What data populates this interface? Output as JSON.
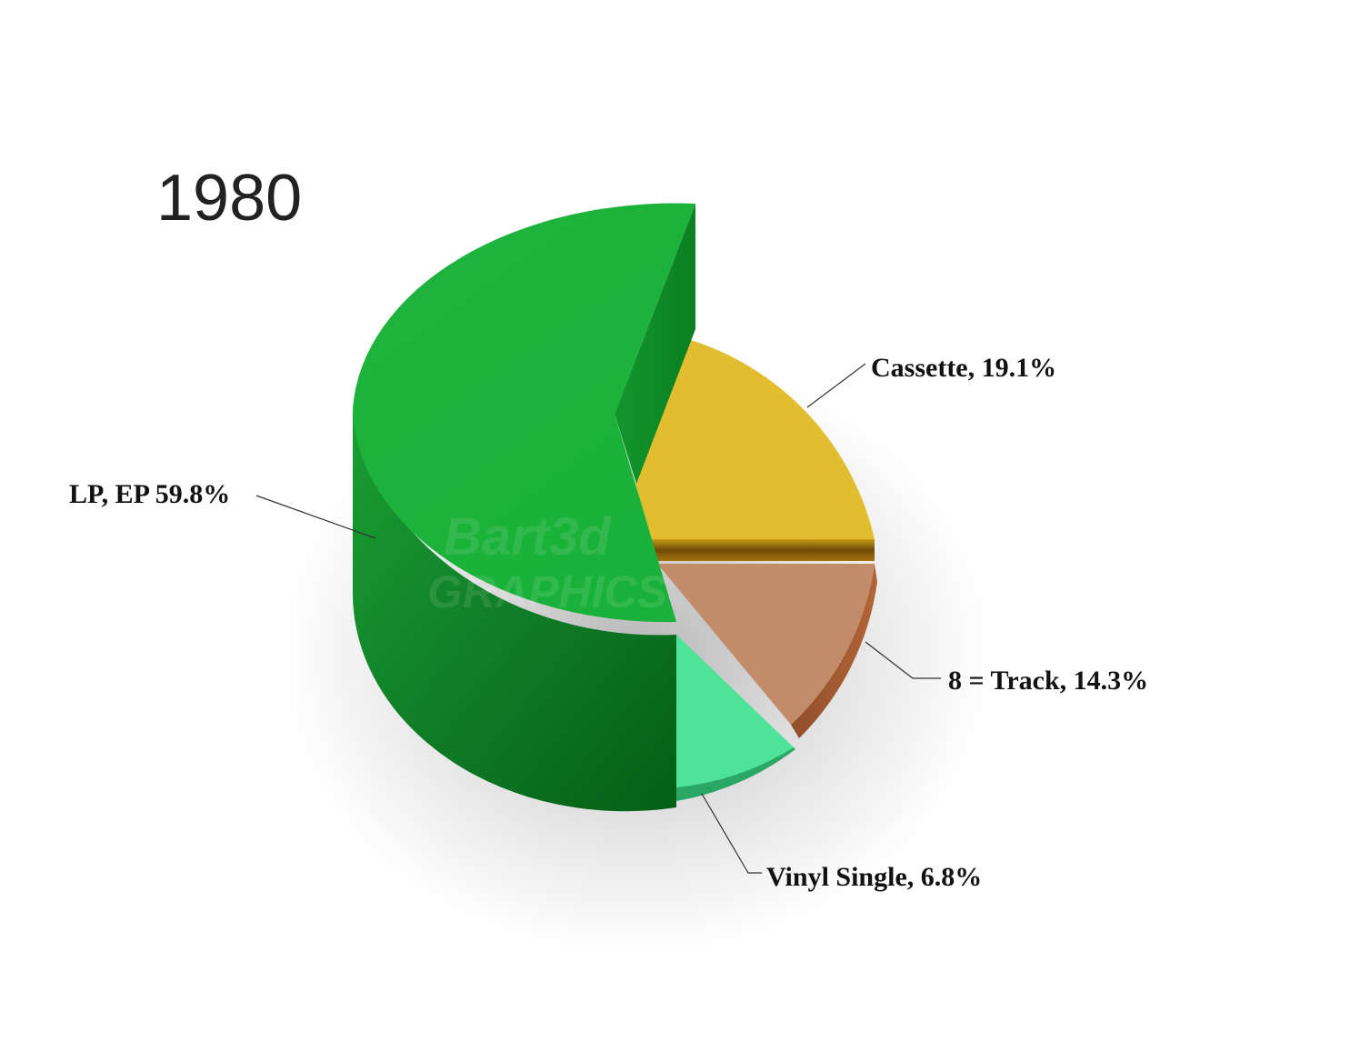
{
  "chart_data": {
    "type": "pie",
    "title": "1980",
    "slices": [
      {
        "name": "LP, EP",
        "value": 59.8,
        "label": "LP, EP 59.8%",
        "color": "#1db23b"
      },
      {
        "name": "Cassette",
        "value": 19.1,
        "label": "Cassette, 19.1%",
        "color": "#e0bd31"
      },
      {
        "name": "8 = Track",
        "value": 14.3,
        "label": "8 = Track, 14.3%",
        "color": "#c28b69"
      },
      {
        "name": "Vinyl Single",
        "value": 6.8,
        "label": "Vinyl Single, 6.8%",
        "color": "#4fe39a"
      }
    ],
    "style": "3d-exploded",
    "legend": "none"
  },
  "watermark": {
    "line1": "Bart3d",
    "line2": "GRAPHICS"
  }
}
